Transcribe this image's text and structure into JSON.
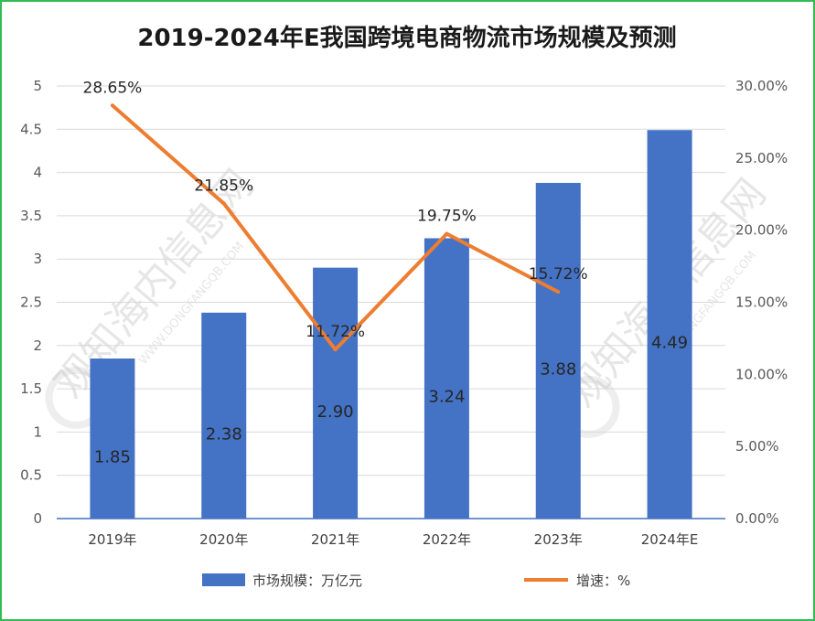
{
  "chart_data": {
    "type": "bar",
    "title": "2019-2024年E我国跨境电商物流市场规模及预测",
    "categories": [
      "2019年",
      "2020年",
      "2021年",
      "2022年",
      "2023年",
      "2024年E"
    ],
    "series": [
      {
        "name": "市场规模：万亿元",
        "type": "bar",
        "axis": "left",
        "values": [
          1.85,
          2.38,
          2.9,
          3.24,
          3.88,
          4.49
        ],
        "labels": [
          "1.85",
          "2.38",
          "2.90",
          "3.24",
          "3.88",
          "4.49"
        ],
        "color": "#4472c4"
      },
      {
        "name": "增速：%",
        "type": "line",
        "axis": "right",
        "values": [
          28.65,
          21.85,
          11.72,
          19.75,
          15.72,
          null
        ],
        "labels": [
          "28.65%",
          "21.85%",
          "11.72%",
          "19.75%",
          "15.72%",
          ""
        ],
        "color": "#ed7d31"
      }
    ],
    "y_left": {
      "min": 0,
      "max": 5,
      "step": 0.5,
      "ticks": [
        "0",
        "0.5",
        "1",
        "1.5",
        "2",
        "2.5",
        "3",
        "3.5",
        "4",
        "4.5",
        "5"
      ]
    },
    "y_right": {
      "min": 0,
      "max": 30,
      "step": 5,
      "ticks": [
        "0.00%",
        "5.00%",
        "10.00%",
        "15.00%",
        "20.00%",
        "25.00%",
        "30.00%"
      ]
    },
    "grid": true,
    "legend": "bottom"
  },
  "watermark": {
    "text": "观知海内信息网",
    "subtext": "WWW.DONGFANGQB.COM"
  },
  "colors": {
    "bar": "#4472c4",
    "line": "#ed7d31",
    "frame": "#33bb55",
    "grid": "#d9d9d9"
  }
}
